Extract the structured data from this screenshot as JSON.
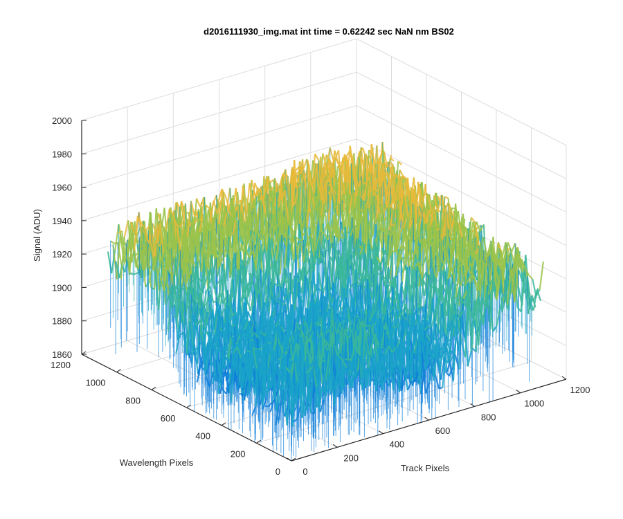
{
  "chart_data": {
    "type": "surface3d",
    "title": "d2016111930_img.mat int time = 0.62242 sec  NaN nm BS02",
    "xlabel": "Track Pixels",
    "ylabel": "Wavelength Pixels",
    "zlabel": "Signal (ADU)",
    "xlim": [
      0,
      1200
    ],
    "ylim": [
      0,
      1200
    ],
    "zlim": [
      1860,
      2000
    ],
    "x_ticks": [
      "0",
      "200",
      "400",
      "600",
      "800",
      "1000",
      "1200"
    ],
    "y_ticks": [
      "0",
      "200",
      "400",
      "600",
      "800",
      "1000",
      "1200"
    ],
    "z_ticks": [
      "1860",
      "1880",
      "1900",
      "1920",
      "1940",
      "1960",
      "1980",
      "2000"
    ],
    "x_range_data": [
      0,
      1100
    ],
    "y_range_data": [
      0,
      1050
    ],
    "grid": true,
    "colormap": "parula",
    "surface": {
      "description": "Noisy detector frame; two elevated ridges (~1930-1960 ADU) near wavelength 1000 and track 1000, lower trough (~1880-1900 ADU) in between",
      "signal_min": 1865,
      "signal_max": 1990,
      "signal_mean": 1925,
      "colors": {
        "low": "#0f7fd8",
        "mid_low": "#1aa3c8",
        "mid": "#3bb79a",
        "mid_high": "#9bc34a",
        "high": "#e8ba3a"
      }
    }
  },
  "colors": {
    "axis": "#262626",
    "grid": "#dcdcdc",
    "background": "#ffffff"
  }
}
